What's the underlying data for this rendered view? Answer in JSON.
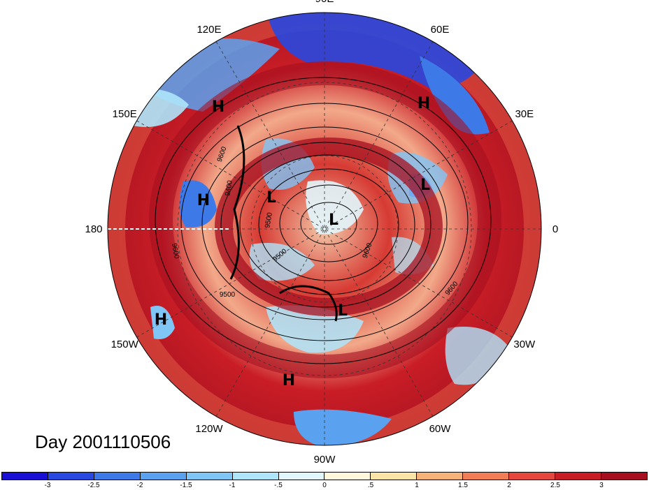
{
  "title": "Day 2001110506",
  "longitude_labels": [
    {
      "text": "90E",
      "lon": 90
    },
    {
      "text": "60E",
      "lon": 60
    },
    {
      "text": "30E",
      "lon": 30
    },
    {
      "text": "0",
      "lon": 0
    },
    {
      "text": "30W",
      "lon": -30
    },
    {
      "text": "60W",
      "lon": -60
    },
    {
      "text": "90W",
      "lon": -90
    },
    {
      "text": "120W",
      "lon": -120
    },
    {
      "text": "150W",
      "lon": -150
    },
    {
      "text": "180",
      "lon": 180
    },
    {
      "text": "150E",
      "lon": 150
    },
    {
      "text": "120E",
      "lon": 120
    }
  ],
  "pressure_systems": [
    {
      "text": "H",
      "kind": "high"
    },
    {
      "text": "H",
      "kind": "high"
    },
    {
      "text": "H",
      "kind": "high"
    },
    {
      "text": "H",
      "kind": "high"
    },
    {
      "text": "H",
      "kind": "high"
    },
    {
      "text": "L",
      "kind": "low"
    },
    {
      "text": "L",
      "kind": "low"
    },
    {
      "text": "L",
      "kind": "low"
    },
    {
      "text": "L",
      "kind": "low"
    }
  ],
  "contour_labels": [
    "9600",
    "9400",
    "9500",
    "9600",
    "9500",
    "9600",
    "9600",
    "9500"
  ],
  "colorbar": {
    "colors": [
      "#1a0fd4",
      "#2848e0",
      "#3d7ae8",
      "#5aa2f0",
      "#7fc6f7",
      "#aee5fb",
      "#e2f6fd",
      "#fff8dc",
      "#fbe4a6",
      "#f7b27a",
      "#f07d56",
      "#e5463d",
      "#c91d26",
      "#a50f1f"
    ],
    "tick_labels": [
      "-3",
      "-2.5",
      "-2",
      "-1.5",
      "-1",
      "-.5",
      "0",
      ".5",
      "1",
      "1.5",
      "2",
      "2.5",
      "3"
    ]
  }
}
